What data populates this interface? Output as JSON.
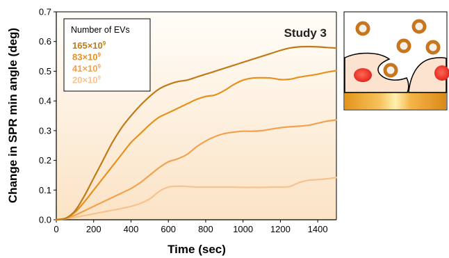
{
  "chart_data": {
    "type": "line",
    "title": "",
    "annotation": "Study 3",
    "xlabel": "Time (sec)",
    "ylabel": "Change in SPR min angle (deg)",
    "xlim": [
      0,
      1500
    ],
    "ylim": [
      0,
      0.7
    ],
    "x_ticks": [
      "0",
      "200",
      "400",
      "600",
      "800",
      "1000",
      "1200",
      "1400"
    ],
    "y_ticks": [
      "0.0",
      "0.1",
      "0.2",
      "0.3",
      "0.4",
      "0.5",
      "0.6",
      "0.7"
    ],
    "legend": {
      "title": "Number of EVs",
      "placement": "top-left"
    },
    "grid": false,
    "series": [
      {
        "name": "165×10⁹",
        "name_base": "165×10",
        "name_exp": "9",
        "color": "#c07a18",
        "x": [
          0,
          50,
          100,
          150,
          200,
          250,
          300,
          350,
          400,
          450,
          500,
          550,
          600,
          650,
          700,
          750,
          800,
          850,
          900,
          950,
          1000,
          1050,
          1100,
          1150,
          1200,
          1250,
          1300,
          1350,
          1400,
          1450,
          1500
        ],
        "y": [
          0.0,
          0.005,
          0.03,
          0.08,
          0.14,
          0.2,
          0.26,
          0.31,
          0.35,
          0.385,
          0.415,
          0.44,
          0.455,
          0.465,
          0.47,
          0.48,
          0.49,
          0.5,
          0.51,
          0.52,
          0.53,
          0.54,
          0.55,
          0.56,
          0.57,
          0.578,
          0.582,
          0.583,
          0.582,
          0.58,
          0.578
        ]
      },
      {
        "name": "83×10⁹",
        "name_base": "83×10",
        "name_exp": "9",
        "color": "#e8901c",
        "x": [
          0,
          50,
          100,
          150,
          200,
          250,
          300,
          350,
          400,
          450,
          500,
          550,
          600,
          650,
          700,
          750,
          800,
          850,
          900,
          950,
          1000,
          1050,
          1100,
          1150,
          1200,
          1250,
          1300,
          1350,
          1400,
          1450,
          1500
        ],
        "y": [
          0.0,
          0.005,
          0.025,
          0.06,
          0.1,
          0.14,
          0.18,
          0.22,
          0.26,
          0.29,
          0.32,
          0.345,
          0.36,
          0.375,
          0.39,
          0.405,
          0.415,
          0.42,
          0.435,
          0.455,
          0.47,
          0.477,
          0.478,
          0.477,
          0.472,
          0.473,
          0.48,
          0.485,
          0.49,
          0.497,
          0.502
        ]
      },
      {
        "name": "41×10⁹",
        "name_base": "41×10",
        "name_exp": "9",
        "color": "#f2a24e",
        "x": [
          0,
          50,
          100,
          150,
          200,
          250,
          300,
          350,
          400,
          450,
          500,
          550,
          600,
          650,
          700,
          750,
          800,
          850,
          900,
          950,
          1000,
          1050,
          1100,
          1150,
          1200,
          1250,
          1300,
          1350,
          1400,
          1450,
          1500
        ],
        "y": [
          0.0,
          0.005,
          0.015,
          0.03,
          0.045,
          0.06,
          0.075,
          0.09,
          0.105,
          0.125,
          0.15,
          0.175,
          0.195,
          0.205,
          0.22,
          0.245,
          0.265,
          0.28,
          0.29,
          0.295,
          0.298,
          0.298,
          0.3,
          0.305,
          0.31,
          0.313,
          0.315,
          0.318,
          0.325,
          0.332,
          0.336
        ]
      },
      {
        "name": "20×10⁹",
        "name_base": "20×10",
        "name_exp": "9",
        "color": "#f6c28e",
        "x": [
          0,
          50,
          100,
          150,
          200,
          250,
          300,
          350,
          400,
          450,
          500,
          550,
          600,
          650,
          700,
          750,
          800,
          850,
          900,
          950,
          1000,
          1050,
          1100,
          1150,
          1200,
          1250,
          1300,
          1350,
          1400,
          1450,
          1500
        ],
        "y": [
          0.0,
          0.003,
          0.008,
          0.014,
          0.02,
          0.026,
          0.032,
          0.038,
          0.045,
          0.055,
          0.07,
          0.095,
          0.11,
          0.113,
          0.112,
          0.11,
          0.11,
          0.11,
          0.11,
          0.11,
          0.109,
          0.109,
          0.109,
          0.11,
          0.11,
          0.112,
          0.125,
          0.133,
          0.135,
          0.138,
          0.142
        ]
      }
    ]
  }
}
